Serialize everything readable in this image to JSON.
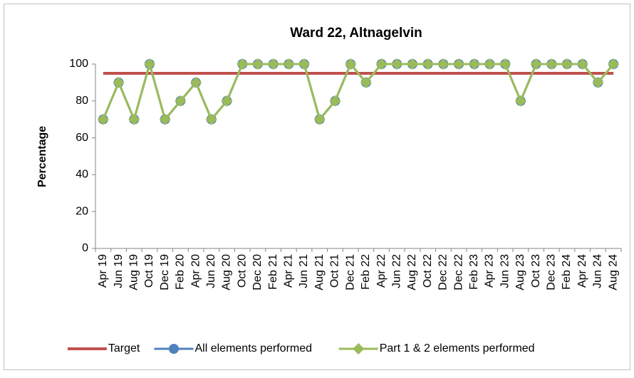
{
  "chart_data": {
    "type": "line",
    "title": "Ward 22, Altnagelvin",
    "y_label": "Percentage",
    "categories": [
      "Apr 19",
      "Jun 19",
      "Aug 19",
      "Oct 19",
      "Dec 19",
      "Feb 20",
      "Apr 20",
      "Jun 20",
      "Aug 20",
      "Oct 20",
      "Dec 20",
      "Feb 21",
      "Apr 21",
      "Jun 21",
      "Aug 21",
      "Oct 21",
      "Dec 21",
      "Feb 22",
      "Apr 22",
      "Jun 22",
      "Aug 22",
      "Oct 22",
      "Dec 22",
      "Dec 22",
      "Feb 23",
      "Apr 23",
      "Jun 23",
      "Aug 23",
      "Oct 23",
      "Dec 23",
      "Feb 24",
      "Apr 24",
      "Jun 24",
      "Aug 24"
    ],
    "series": [
      {
        "name": "Target",
        "color": "#c0504d",
        "marker": "none",
        "values": [
          95,
          95,
          95,
          95,
          95,
          95,
          95,
          95,
          95,
          95,
          95,
          95,
          95,
          95,
          95,
          95,
          95,
          95,
          95,
          95,
          95,
          95,
          95,
          95,
          95,
          95,
          95,
          95,
          95,
          95,
          95,
          95,
          95,
          95
        ]
      },
      {
        "name": "All elements performed",
        "color": "#4f81bd",
        "marker": "circle",
        "values": [
          70,
          90,
          70,
          100,
          70,
          80,
          90,
          70,
          80,
          100,
          100,
          100,
          100,
          100,
          70,
          80,
          100,
          90,
          100,
          100,
          100,
          100,
          100,
          100,
          100,
          100,
          100,
          80,
          100,
          100,
          100,
          100,
          90,
          100
        ]
      },
      {
        "name": "Part 1 & 2 elements performed",
        "color": "#9bbb59",
        "marker": "diamond",
        "values": [
          70,
          90,
          70,
          100,
          70,
          80,
          90,
          70,
          80,
          100,
          100,
          100,
          100,
          100,
          70,
          80,
          100,
          90,
          100,
          100,
          100,
          100,
          100,
          100,
          100,
          100,
          100,
          80,
          100,
          100,
          100,
          100,
          90,
          100
        ]
      }
    ],
    "ylim": [
      0,
      100
    ],
    "yticks": [
      0,
      20,
      40,
      60,
      80,
      100
    ],
    "grid": false,
    "legend": "bottom"
  }
}
